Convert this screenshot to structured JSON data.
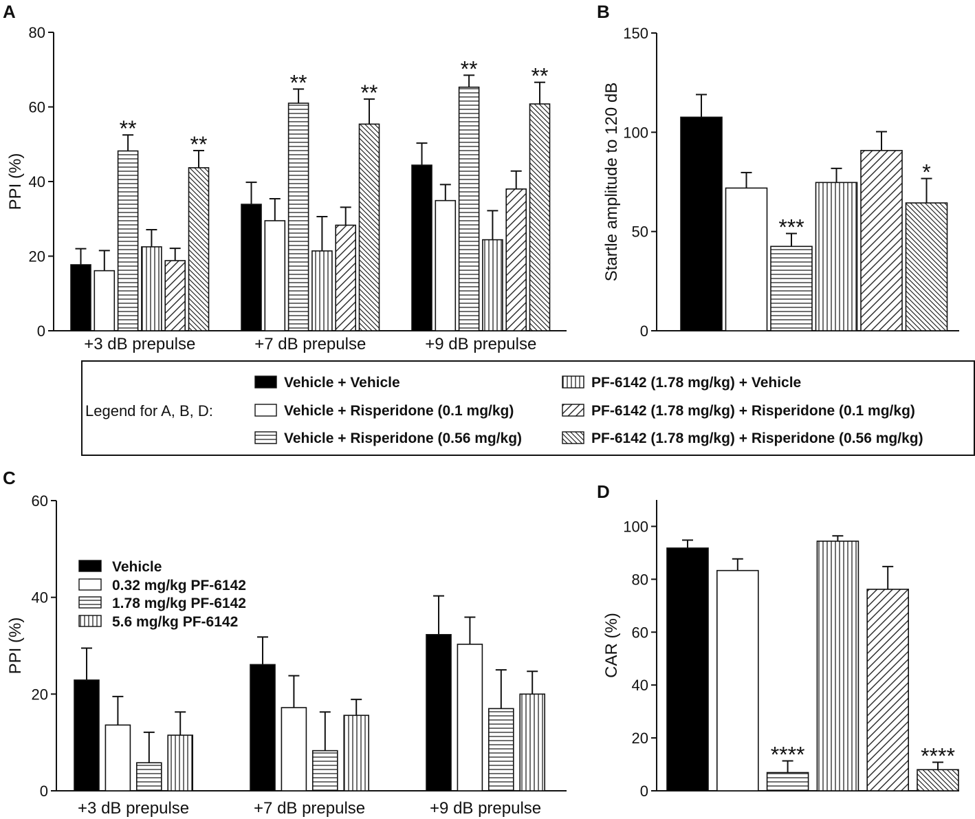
{
  "styles": {
    "vehicle_vehicle": {
      "fill": "solid",
      "color": "#000000"
    },
    "veh_risp01": {
      "fill": "open"
    },
    "veh_risp056": {
      "fill": "horizontal"
    },
    "pf_vehicle": {
      "fill": "vertical"
    },
    "pf_risp01": {
      "fill": "diag_wide"
    },
    "pf_risp056": {
      "fill": "diag_dense"
    }
  },
  "legend_main": {
    "title": "Legend for A, B, D:",
    "items": [
      {
        "key": "vehicle_vehicle",
        "label": "Vehicle + Vehicle"
      },
      {
        "key": "veh_risp01",
        "label": "Vehicle + Risperidone (0.1 mg/kg)"
      },
      {
        "key": "veh_risp056",
        "label": "Vehicle + Risperidone (0.56 mg/kg)"
      },
      {
        "key": "pf_vehicle",
        "label": "PF-6142 (1.78 mg/kg) + Vehicle"
      },
      {
        "key": "pf_risp01",
        "label": "PF-6142 (1.78 mg/kg) + Risperidone (0.1 mg/kg)"
      },
      {
        "key": "pf_risp056",
        "label": "PF-6142 (1.78 mg/kg) + Risperidone (0.56 mg/kg)"
      }
    ]
  },
  "legend_c": {
    "items": [
      {
        "key": "vehicle_vehicle",
        "label": "Vehicle"
      },
      {
        "key": "veh_risp01",
        "label": "0.32 mg/kg PF-6142"
      },
      {
        "key": "veh_risp056",
        "label": "1.78 mg/kg PF-6142"
      },
      {
        "key": "pf_vehicle",
        "label": "5.6 mg/kg PF-6142"
      }
    ]
  },
  "chart_data": [
    {
      "id": "A",
      "panel_label": "A",
      "type": "bar",
      "ylabel": "PPI (%)",
      "ylim": [
        0,
        80
      ],
      "yticks": [
        0,
        20,
        40,
        60,
        80
      ],
      "yticklabels": [
        "0",
        "20",
        "40",
        "60",
        "80"
      ],
      "categories": [
        "+3 dB prepulse",
        "+7 dB prepulse",
        "+9 dB prepulse"
      ],
      "series": [
        {
          "name": "Vehicle + Vehicle",
          "style": "vehicle_vehicle",
          "values": [
            17.7,
            33.9,
            44.4
          ],
          "errors": [
            4.3,
            5.9,
            5.9
          ],
          "sig": [
            "",
            "",
            ""
          ]
        },
        {
          "name": "Vehicle + Risperidone (0.1 mg/kg)",
          "style": "veh_risp01",
          "values": [
            16.1,
            29.5,
            34.9
          ],
          "errors": [
            5.4,
            5.9,
            4.3
          ],
          "sig": [
            "",
            "",
            ""
          ]
        },
        {
          "name": "Vehicle + Risperidone (0.56 mg/kg)",
          "style": "veh_risp056",
          "values": [
            48.2,
            61.0,
            65.3
          ],
          "errors": [
            4.3,
            3.8,
            3.2
          ],
          "sig": [
            "**",
            "**",
            "**"
          ]
        },
        {
          "name": "PF-6142 (1.78 mg/kg) + Vehicle",
          "style": "pf_vehicle",
          "values": [
            22.5,
            21.4,
            24.4
          ],
          "errors": [
            4.6,
            9.2,
            7.8
          ],
          "sig": [
            "",
            "",
            ""
          ]
        },
        {
          "name": "PF-6142 (1.78 mg/kg) + Risperidone (0.1 mg/kg)",
          "style": "pf_risp01",
          "values": [
            18.8,
            28.3,
            38.0
          ],
          "errors": [
            3.3,
            4.8,
            4.8
          ],
          "sig": [
            "",
            "",
            ""
          ]
        },
        {
          "name": "PF-6142 (1.78 mg/kg) + Risperidone (0.56 mg/kg)",
          "style": "pf_risp056",
          "values": [
            43.7,
            55.4,
            60.8
          ],
          "errors": [
            4.6,
            6.7,
            5.8
          ],
          "sig": [
            "**",
            "**",
            "**"
          ]
        }
      ]
    },
    {
      "id": "B",
      "panel_label": "B",
      "type": "bar",
      "ylabel": "Startle amplitude to 120 dB",
      "ylim": [
        0,
        150
      ],
      "yticks": [
        0,
        50,
        100,
        150
      ],
      "yticklabels": [
        "0",
        "50",
        "100",
        "150"
      ],
      "categories": [
        ""
      ],
      "series": [
        {
          "name": "Vehicle + Vehicle",
          "style": "vehicle_vehicle",
          "values": [
            107.6
          ],
          "errors": [
            11.4
          ],
          "sig": [
            ""
          ]
        },
        {
          "name": "Vehicle + Risperidone (0.1 mg/kg)",
          "style": "veh_risp01",
          "values": [
            71.9
          ],
          "errors": [
            7.8
          ],
          "sig": [
            ""
          ]
        },
        {
          "name": "Vehicle + Risperidone (0.56 mg/kg)",
          "style": "veh_risp056",
          "values": [
            42.5
          ],
          "errors": [
            6.5
          ],
          "sig": [
            "***"
          ]
        },
        {
          "name": "PF-6142 (1.78 mg/kg) + Vehicle",
          "style": "pf_vehicle",
          "values": [
            74.7
          ],
          "errors": [
            7.1
          ],
          "sig": [
            ""
          ]
        },
        {
          "name": "PF-6142 (1.78 mg/kg) + Risperidone (0.1 mg/kg)",
          "style": "pf_risp01",
          "values": [
            90.8
          ],
          "errors": [
            9.5
          ],
          "sig": [
            ""
          ]
        },
        {
          "name": "PF-6142 (1.78 mg/kg) + Risperidone (0.56 mg/kg)",
          "style": "pf_risp056",
          "values": [
            64.4
          ],
          "errors": [
            12.3
          ],
          "sig": [
            "*"
          ]
        }
      ]
    },
    {
      "id": "C",
      "panel_label": "C",
      "type": "bar",
      "ylabel": "PPI (%)",
      "ylim": [
        0,
        60
      ],
      "yticks": [
        0,
        20,
        40,
        60
      ],
      "yticklabels": [
        "0",
        "20",
        "40",
        "60"
      ],
      "categories": [
        "+3 dB prepulse",
        "+7 dB prepulse",
        "+9 dB prepulse"
      ],
      "series": [
        {
          "name": "Vehicle",
          "style": "vehicle_vehicle",
          "values": [
            22.9,
            26.1,
            32.3
          ],
          "errors": [
            6.6,
            5.7,
            8.0
          ],
          "sig": [
            "",
            "",
            ""
          ]
        },
        {
          "name": "0.32 mg/kg PF-6142",
          "style": "veh_risp01",
          "values": [
            13.6,
            17.2,
            30.3
          ],
          "errors": [
            5.9,
            6.6,
            5.6
          ],
          "sig": [
            "",
            "",
            ""
          ]
        },
        {
          "name": "1.78 mg/kg PF-6142",
          "style": "veh_risp056",
          "values": [
            5.8,
            8.3,
            17.0
          ],
          "errors": [
            6.3,
            8.0,
            8.0
          ],
          "sig": [
            "",
            "",
            ""
          ]
        },
        {
          "name": "5.6 mg/kg PF-6142",
          "style": "pf_vehicle",
          "values": [
            11.5,
            15.6,
            20.0
          ],
          "errors": [
            4.8,
            3.3,
            4.7
          ],
          "sig": [
            "",
            "",
            ""
          ]
        }
      ]
    },
    {
      "id": "D",
      "panel_label": "D",
      "type": "bar",
      "ylabel": "CAR (%)",
      "ylim": [
        0,
        110
      ],
      "yticks": [
        0,
        20,
        40,
        60,
        80,
        100
      ],
      "yticklabels": [
        "0",
        "20",
        "40",
        "60",
        "80",
        "100"
      ],
      "categories": [
        ""
      ],
      "series": [
        {
          "name": "Vehicle + Vehicle",
          "style": "vehicle_vehicle",
          "values": [
            91.8
          ],
          "errors": [
            3.0
          ],
          "sig": [
            ""
          ]
        },
        {
          "name": "Vehicle + Risperidone (0.1 mg/kg)",
          "style": "veh_risp01",
          "values": [
            83.3
          ],
          "errors": [
            4.4
          ],
          "sig": [
            ""
          ]
        },
        {
          "name": "Vehicle + Risperidone (0.56 mg/kg)",
          "style": "veh_risp056",
          "values": [
            6.9
          ],
          "errors": [
            4.4
          ],
          "sig": [
            "****"
          ]
        },
        {
          "name": "PF-6142 (1.78 mg/kg) + Vehicle",
          "style": "pf_vehicle",
          "values": [
            94.4
          ],
          "errors": [
            2.0
          ],
          "sig": [
            ""
          ]
        },
        {
          "name": "PF-6142 (1.78 mg/kg) + Risperidone (0.1 mg/kg)",
          "style": "pf_risp01",
          "values": [
            76.2
          ],
          "errors": [
            8.6
          ],
          "sig": [
            ""
          ]
        },
        {
          "name": "PF-6142 (1.78 mg/kg) + Risperidone (0.56 mg/kg)",
          "style": "pf_risp056",
          "values": [
            8.0
          ],
          "errors": [
            2.8
          ],
          "sig": [
            "****"
          ]
        }
      ]
    }
  ]
}
